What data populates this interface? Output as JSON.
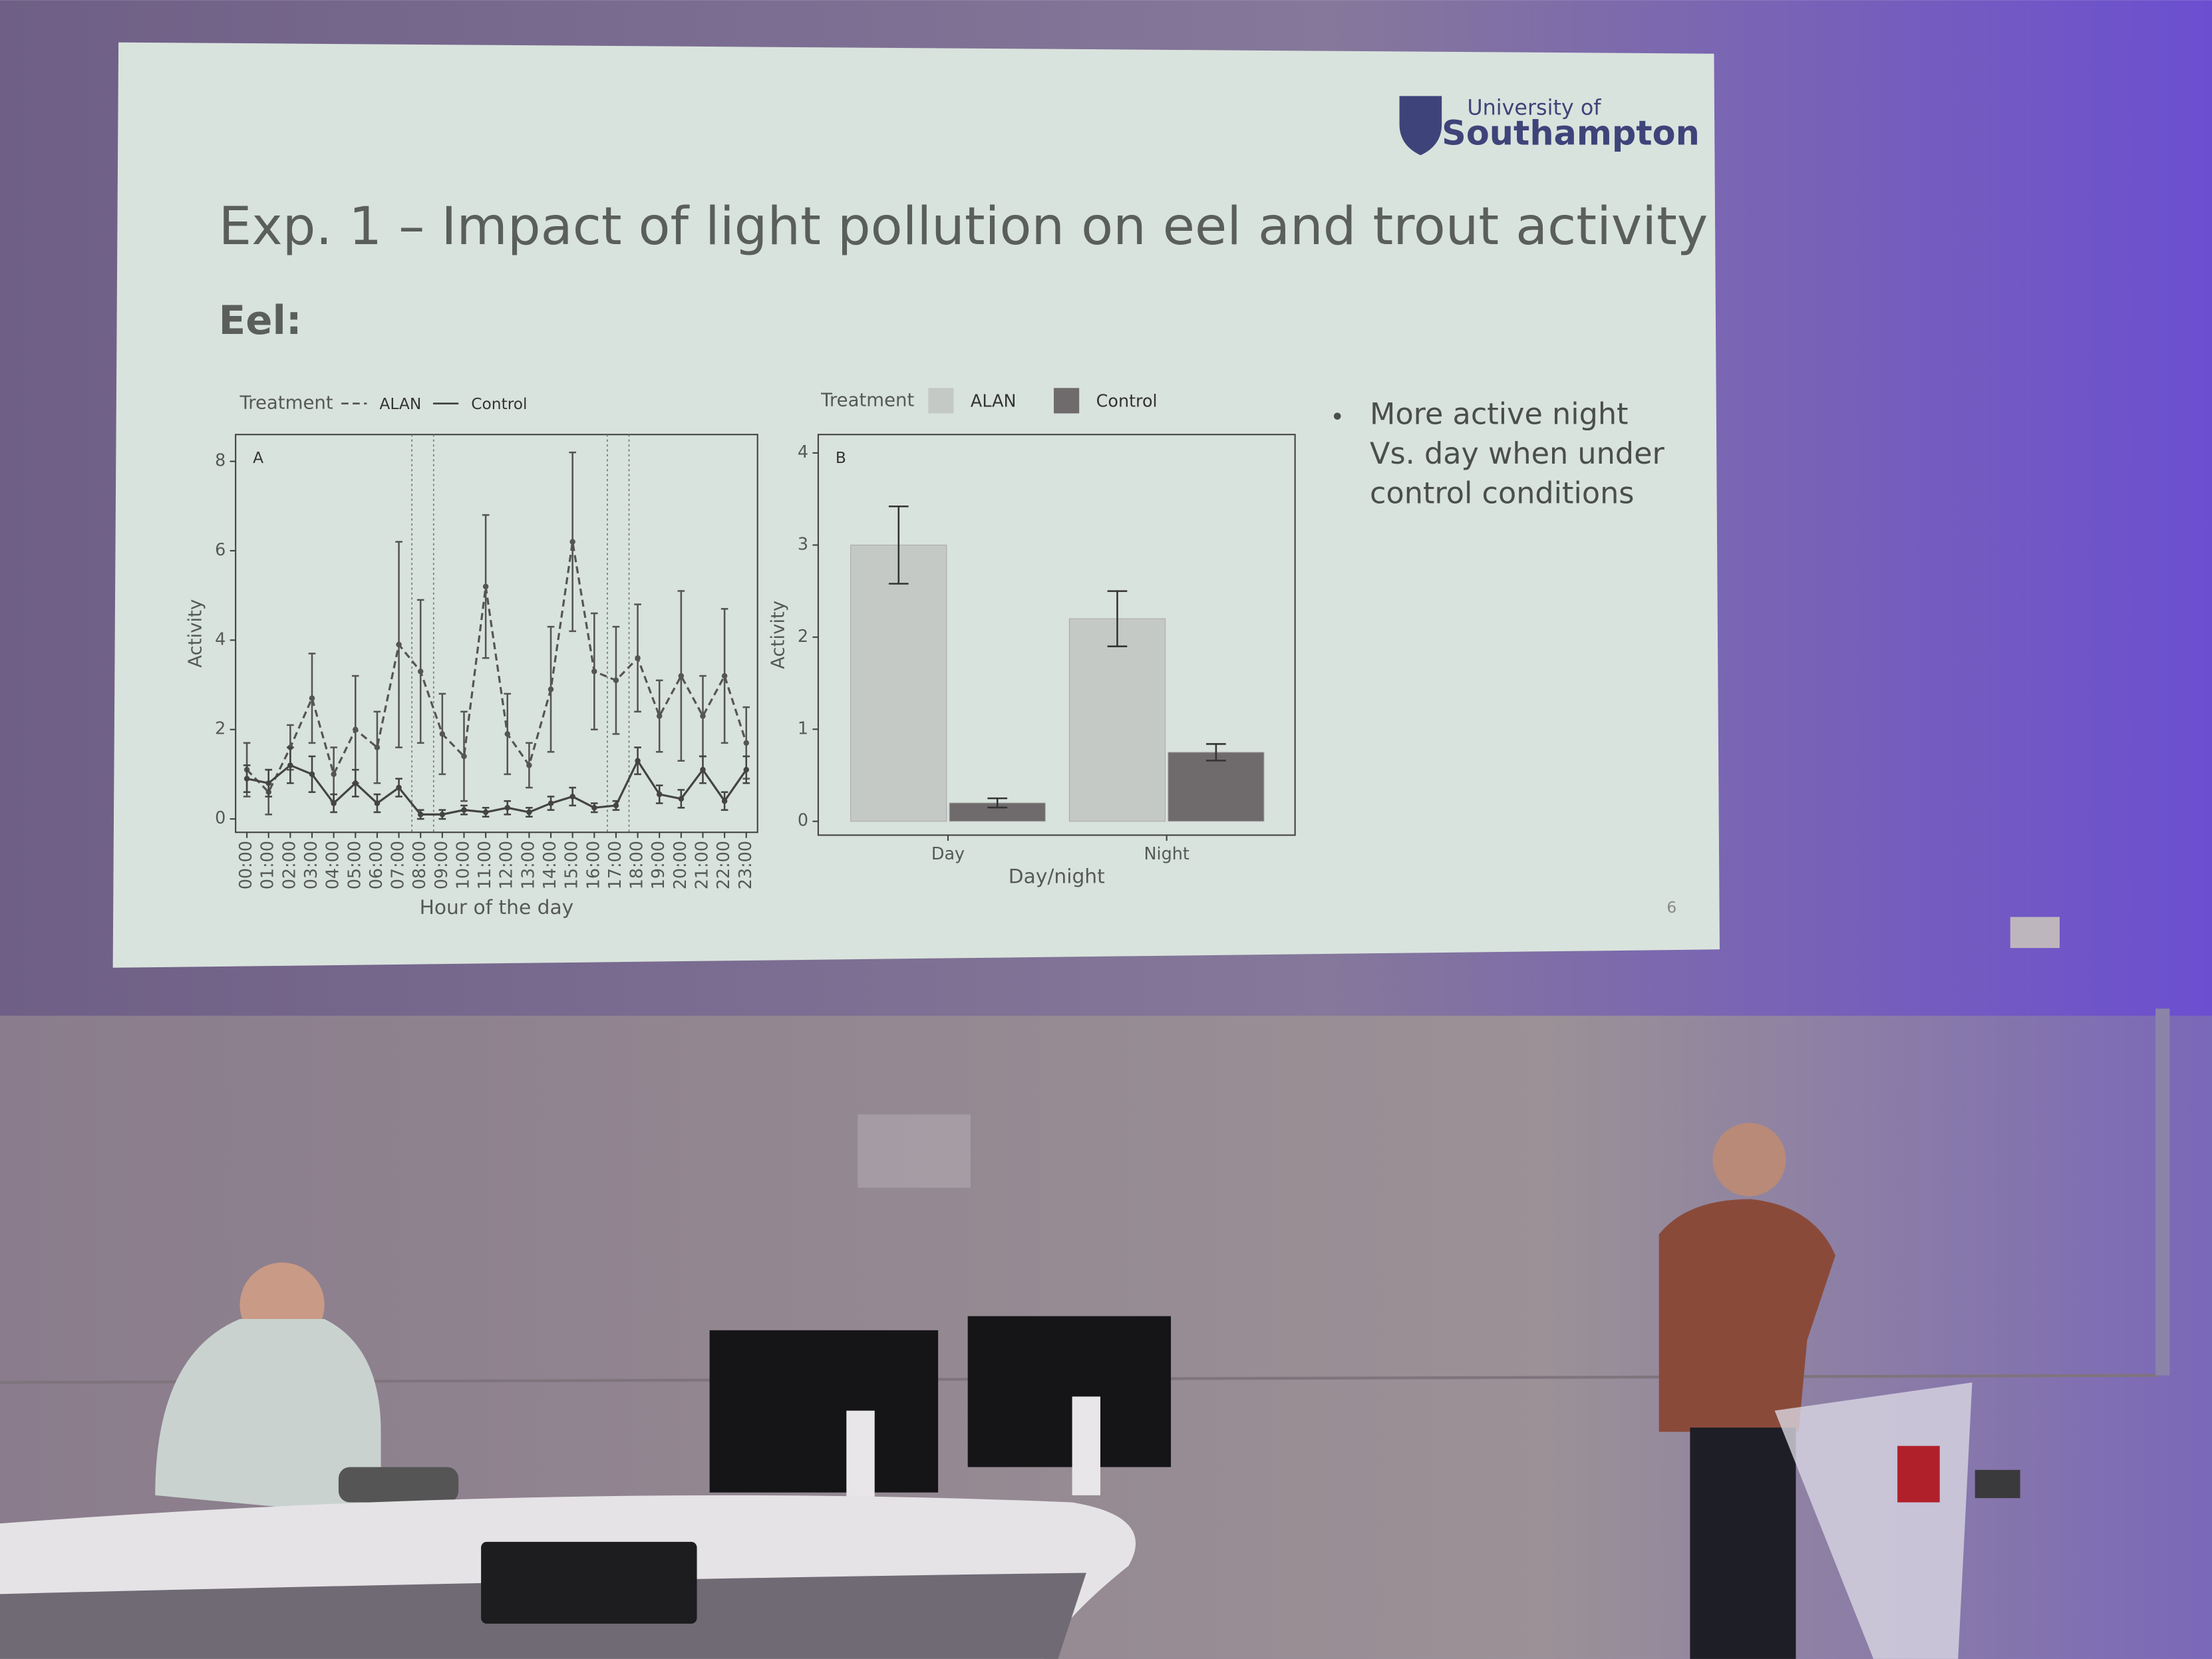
{
  "slide": {
    "logo_line1": "University of",
    "logo_line2": "Southampton",
    "title": "Exp. 1 – Impact of light pollution on eel and trout activity",
    "subtitle": "Eel:",
    "bullet_lines": [
      "More active night",
      "Vs. day when under",
      "control conditions"
    ],
    "page_number": "6"
  },
  "chart_data": [
    {
      "type": "line",
      "panel": "A",
      "legend_title": "Treatment",
      "x_label": "Hour of the day",
      "y_label": "Activity",
      "categories": [
        "00:00",
        "01:00",
        "02:00",
        "03:00",
        "04:00",
        "05:00",
        "06:00",
        "07:00",
        "08:00",
        "09:00",
        "10:00",
        "11:00",
        "12:00",
        "13:00",
        "14:00",
        "15:00",
        "16:00",
        "17:00",
        "18:00",
        "19:00",
        "20:00",
        "21:00",
        "22:00",
        "23:00"
      ],
      "series": [
        {
          "name": "ALAN",
          "color": "#555555",
          "line_style": "dashed",
          "values": [
            1.1,
            0.6,
            1.6,
            2.7,
            1.0,
            2.0,
            1.6,
            3.9,
            3.3,
            1.9,
            1.4,
            5.2,
            1.9,
            1.2,
            2.9,
            6.2,
            3.3,
            3.1,
            3.6,
            2.3,
            3.2,
            2.3,
            3.2,
            1.7
          ],
          "errors": [
            0.6,
            0.5,
            0.5,
            1.0,
            0.6,
            1.2,
            0.8,
            2.3,
            1.6,
            0.9,
            1.0,
            1.6,
            0.9,
            0.5,
            1.4,
            2.0,
            1.3,
            1.2,
            1.2,
            0.8,
            1.9,
            0.9,
            1.5,
            0.8
          ]
        },
        {
          "name": "Control",
          "color": "#444444",
          "line_style": "solid",
          "values": [
            0.9,
            0.8,
            1.2,
            1.0,
            0.35,
            0.8,
            0.35,
            0.7,
            0.1,
            0.1,
            0.2,
            0.15,
            0.25,
            0.15,
            0.35,
            0.5,
            0.25,
            0.3,
            1.3,
            0.55,
            0.45,
            1.1,
            0.4,
            1.1
          ],
          "errors": [
            0.3,
            0.3,
            0.4,
            0.4,
            0.2,
            0.3,
            0.2,
            0.2,
            0.1,
            0.1,
            0.1,
            0.1,
            0.15,
            0.1,
            0.15,
            0.2,
            0.1,
            0.1,
            0.3,
            0.2,
            0.2,
            0.3,
            0.2,
            0.3
          ]
        }
      ],
      "reference_lines_x": [
        7.6,
        8.6,
        16.6,
        17.6
      ],
      "ylim": [
        -0.3,
        8.6
      ],
      "yticks": [
        0,
        2,
        4,
        6,
        8
      ],
      "grid": false
    },
    {
      "type": "bar",
      "panel": "B",
      "legend_title": "Treatment",
      "x_label": "Day/night",
      "y_label": "Activity",
      "categories": [
        "Day",
        "Night"
      ],
      "series": [
        {
          "name": "ALAN",
          "color": "#c5c9c6",
          "values": [
            3.0,
            2.2
          ],
          "errors": [
            0.42,
            0.3
          ]
        },
        {
          "name": "Control",
          "color": "#6f6a6b",
          "values": [
            0.2,
            0.75
          ],
          "errors": [
            0.05,
            0.09
          ]
        }
      ],
      "ylim": [
        -0.15,
        4.2
      ],
      "yticks": [
        0,
        1,
        2,
        3,
        4
      ],
      "grid": false
    }
  ]
}
